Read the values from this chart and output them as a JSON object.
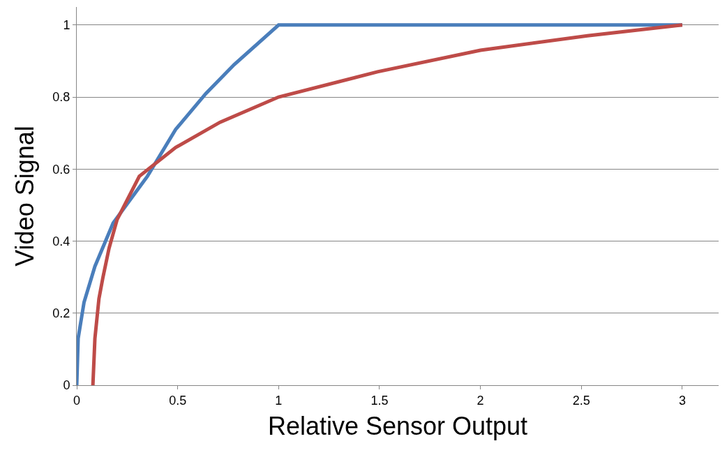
{
  "chart_data": {
    "type": "line",
    "xlabel": "Relative Sensor Output",
    "ylabel": "Video Signal",
    "xlim": [
      0,
      3.18
    ],
    "xticks": [
      0,
      0.5,
      1,
      1.5,
      2,
      2.5,
      3
    ],
    "ylim": [
      0,
      1.05
    ],
    "yticks": [
      0,
      0.2,
      0.4,
      0.6,
      0.8,
      1
    ],
    "grid": "y",
    "legend": false,
    "marker": "none",
    "line_style": "solid",
    "series": [
      {
        "color": "#4a7ebb",
        "x": [
          0,
          0.007,
          0.036,
          0.09,
          0.18,
          0.35,
          0.49,
          0.64,
          0.78,
          1,
          3
        ],
        "values": [
          0,
          0.13,
          0.23,
          0.33,
          0.45,
          0.58,
          0.71,
          0.81,
          0.89,
          1,
          1
        ]
      },
      {
        "color": "#be4b48",
        "x": [
          0.08,
          0.09,
          0.11,
          0.13,
          0.16,
          0.2,
          0.31,
          0.49,
          0.71,
          1,
          1.49,
          2,
          2.53,
          3
        ],
        "values": [
          0,
          0.13,
          0.24,
          0.3,
          0.38,
          0.46,
          0.58,
          0.66,
          0.73,
          0.8,
          0.87,
          0.93,
          0.97,
          1
        ]
      }
    ]
  }
}
